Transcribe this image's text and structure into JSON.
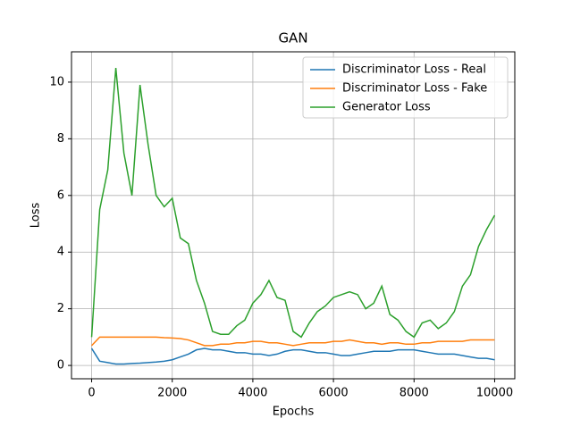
{
  "chart_data": {
    "type": "line",
    "title": "GAN",
    "x_label": "Epochs",
    "y_label": "Loss",
    "x": [
      0,
      200,
      400,
      600,
      800,
      1000,
      1200,
      1400,
      1600,
      1800,
      2000,
      2200,
      2400,
      2600,
      2800,
      3000,
      3200,
      3400,
      3600,
      3800,
      4000,
      4200,
      4400,
      4600,
      4800,
      5000,
      5200,
      5400,
      5600,
      5800,
      6000,
      6200,
      6400,
      6600,
      6800,
      7000,
      7200,
      7400,
      7600,
      7800,
      8000,
      8200,
      8400,
      8600,
      8800,
      9000,
      9200,
      9400,
      9600,
      9800,
      10000
    ],
    "series": [
      {
        "name": "Discriminator Loss - Real",
        "color": "#1f77b4",
        "values": [
          0.6,
          0.15,
          0.1,
          0.05,
          0.05,
          0.07,
          0.08,
          0.1,
          0.12,
          0.15,
          0.2,
          0.3,
          0.4,
          0.55,
          0.6,
          0.55,
          0.55,
          0.5,
          0.45,
          0.45,
          0.4,
          0.4,
          0.35,
          0.4,
          0.5,
          0.55,
          0.55,
          0.5,
          0.45,
          0.45,
          0.4,
          0.35,
          0.35,
          0.4,
          0.45,
          0.5,
          0.5,
          0.5,
          0.55,
          0.55,
          0.55,
          0.5,
          0.45,
          0.4,
          0.4,
          0.4,
          0.35,
          0.3,
          0.25,
          0.25,
          0.2
        ]
      },
      {
        "name": "Discriminator Loss - Fake",
        "color": "#ff7f0e",
        "values": [
          0.7,
          1.0,
          1.0,
          1.0,
          1.0,
          1.0,
          1.0,
          1.0,
          1.0,
          0.98,
          0.97,
          0.95,
          0.9,
          0.8,
          0.7,
          0.7,
          0.75,
          0.75,
          0.8,
          0.8,
          0.85,
          0.85,
          0.8,
          0.8,
          0.75,
          0.7,
          0.75,
          0.8,
          0.8,
          0.8,
          0.85,
          0.85,
          0.9,
          0.85,
          0.8,
          0.8,
          0.75,
          0.8,
          0.8,
          0.75,
          0.75,
          0.8,
          0.8,
          0.85,
          0.85,
          0.85,
          0.85,
          0.9,
          0.9,
          0.9,
          0.9
        ]
      },
      {
        "name": "Generator Loss",
        "color": "#2ca02c",
        "values": [
          1.0,
          5.5,
          6.9,
          10.5,
          7.5,
          6.0,
          9.9,
          7.8,
          6.0,
          5.6,
          5.9,
          4.5,
          4.3,
          3.0,
          2.2,
          1.2,
          1.1,
          1.1,
          1.4,
          1.6,
          2.2,
          2.5,
          3.0,
          2.4,
          2.3,
          1.2,
          1.0,
          1.5,
          1.9,
          2.1,
          2.4,
          2.5,
          2.6,
          2.5,
          2.0,
          2.2,
          2.8,
          1.8,
          1.6,
          1.2,
          1.0,
          1.5,
          1.6,
          1.3,
          1.5,
          1.9,
          2.8,
          3.2,
          4.2,
          4.8,
          5.3
        ]
      }
    ],
    "xlim": [
      -500,
      10500
    ],
    "ylim": [
      -0.47,
      11.07
    ],
    "xticks": [
      0,
      2000,
      4000,
      6000,
      8000,
      10000
    ],
    "yticks": [
      0,
      2,
      4,
      6,
      8,
      10
    ],
    "grid": true,
    "legend": "upper-right"
  }
}
